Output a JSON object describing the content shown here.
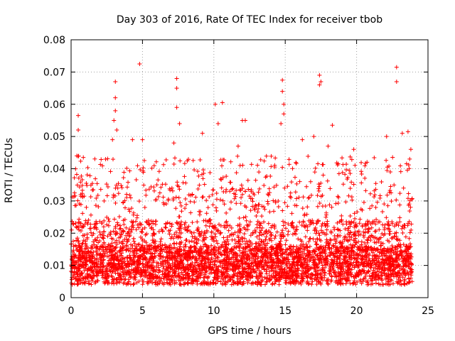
{
  "chart_data": {
    "type": "scatter",
    "title": "Day 303 of 2016, Rate Of TEC Index for receiver tbob",
    "xlabel": "GPS time / hours",
    "ylabel": "ROTI / TECUs",
    "xlim": [
      0,
      25
    ],
    "ylim": [
      0,
      0.08
    ],
    "grid": true,
    "marker": "+",
    "xticks": [
      0,
      5,
      10,
      15,
      20,
      25
    ],
    "xtick_labels": [
      "0",
      "5",
      "10",
      "15",
      "20",
      "25"
    ],
    "yticks": [
      0,
      0.01,
      0.02,
      0.03,
      0.04,
      0.05,
      0.06,
      0.07,
      0.08
    ],
    "ytick_labels": [
      "0",
      "0.01",
      "0.02",
      "0.03",
      "0.04",
      "0.05",
      "0.06",
      "0.07",
      "0.08"
    ],
    "series": [
      {
        "name": "ROTI",
        "color": "#ff0000",
        "x_range": [
          0,
          23.9
        ],
        "typical_range": [
          0.003,
          0.03
        ],
        "peak_points": [
          {
            "x": 0.5,
            "y": 0.0565
          },
          {
            "x": 0.5,
            "y": 0.052
          },
          {
            "x": 0.4,
            "y": 0.044
          },
          {
            "x": 2.9,
            "y": 0.049
          },
          {
            "x": 3.1,
            "y": 0.067
          },
          {
            "x": 3.1,
            "y": 0.062
          },
          {
            "x": 3.1,
            "y": 0.058
          },
          {
            "x": 3.0,
            "y": 0.055
          },
          {
            "x": 3.2,
            "y": 0.052
          },
          {
            "x": 4.8,
            "y": 0.0725
          },
          {
            "x": 5.0,
            "y": 0.049
          },
          {
            "x": 4.3,
            "y": 0.049
          },
          {
            "x": 7.4,
            "y": 0.068
          },
          {
            "x": 7.4,
            "y": 0.065
          },
          {
            "x": 7.4,
            "y": 0.059
          },
          {
            "x": 7.6,
            "y": 0.054
          },
          {
            "x": 7.2,
            "y": 0.048
          },
          {
            "x": 9.2,
            "y": 0.051
          },
          {
            "x": 10.1,
            "y": 0.06
          },
          {
            "x": 10.6,
            "y": 0.0605
          },
          {
            "x": 10.3,
            "y": 0.054
          },
          {
            "x": 12.0,
            "y": 0.055
          },
          {
            "x": 12.2,
            "y": 0.055
          },
          {
            "x": 11.7,
            "y": 0.047
          },
          {
            "x": 14.8,
            "y": 0.0675
          },
          {
            "x": 14.8,
            "y": 0.064
          },
          {
            "x": 14.9,
            "y": 0.06
          },
          {
            "x": 14.9,
            "y": 0.057
          },
          {
            "x": 14.7,
            "y": 0.054
          },
          {
            "x": 16.2,
            "y": 0.049
          },
          {
            "x": 17.0,
            "y": 0.05
          },
          {
            "x": 17.4,
            "y": 0.069
          },
          {
            "x": 17.5,
            "y": 0.067
          },
          {
            "x": 17.4,
            "y": 0.066
          },
          {
            "x": 18.3,
            "y": 0.0535
          },
          {
            "x": 18.0,
            "y": 0.047
          },
          {
            "x": 19.8,
            "y": 0.046
          },
          {
            "x": 22.1,
            "y": 0.05
          },
          {
            "x": 22.8,
            "y": 0.0715
          },
          {
            "x": 22.8,
            "y": 0.067
          },
          {
            "x": 23.2,
            "y": 0.051
          },
          {
            "x": 23.6,
            "y": 0.0515
          },
          {
            "x": 23.8,
            "y": 0.046
          }
        ]
      }
    ]
  }
}
